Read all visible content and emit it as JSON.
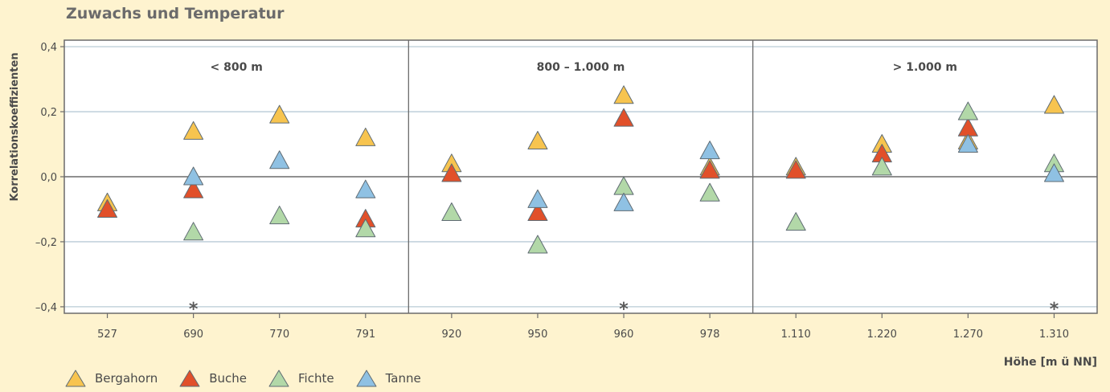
{
  "chart_data": {
    "type": "scatter",
    "title": "Zuwachs und Temperatur",
    "xlabel": "Höhe [m ü NN]",
    "ylabel": "Korrelationskoeffizienten",
    "categories": [
      "527",
      "690",
      "770",
      "791",
      "920",
      "950",
      "960",
      "978",
      "1.110",
      "1.220",
      "1.270",
      "1.310"
    ],
    "y_ticks": [
      0.4,
      0.2,
      0.0,
      -0.2,
      -0.4
    ],
    "y_tick_labels": [
      "0,4",
      "0,2",
      "0,0",
      "–0,2",
      "–0,4"
    ],
    "ylim": [
      -0.42,
      0.42
    ],
    "grid": true,
    "legend_position": "bottom-left",
    "panels": [
      {
        "label": "< 800 m",
        "categories": [
          "527",
          "690",
          "770",
          "791"
        ]
      },
      {
        "label": "800 – 1.000 m",
        "categories": [
          "920",
          "950",
          "960",
          "978"
        ]
      },
      {
        "label": "> 1.000 m",
        "categories": [
          "1.110",
          "1.220",
          "1.270",
          "1.310"
        ]
      }
    ],
    "significance_marks": [
      {
        "category": "690",
        "text": "*"
      },
      {
        "category": "960",
        "text": "*"
      },
      {
        "category": "1.310",
        "text": "*"
      }
    ],
    "series": [
      {
        "name": "Bergahorn",
        "color": "#f7c44f",
        "values": [
          -0.08,
          0.14,
          0.19,
          0.12,
          0.04,
          0.11,
          0.25,
          0.03,
          0.03,
          0.1,
          0.11,
          0.22
        ]
      },
      {
        "name": "Buche",
        "color": "#e1502a",
        "values": [
          -0.1,
          -0.04,
          null,
          -0.13,
          0.01,
          -0.11,
          0.18,
          0.02,
          0.02,
          0.07,
          0.15,
          null
        ]
      },
      {
        "name": "Fichte",
        "color": "#b2d8a8",
        "values": [
          null,
          -0.17,
          -0.12,
          -0.16,
          -0.11,
          -0.21,
          -0.03,
          -0.05,
          -0.14,
          0.03,
          0.2,
          0.04
        ]
      },
      {
        "name": "Tanne",
        "color": "#8fc1e3",
        "values": [
          null,
          0.0,
          0.05,
          -0.04,
          null,
          -0.07,
          -0.08,
          0.08,
          null,
          null,
          0.1,
          0.01
        ]
      }
    ]
  }
}
